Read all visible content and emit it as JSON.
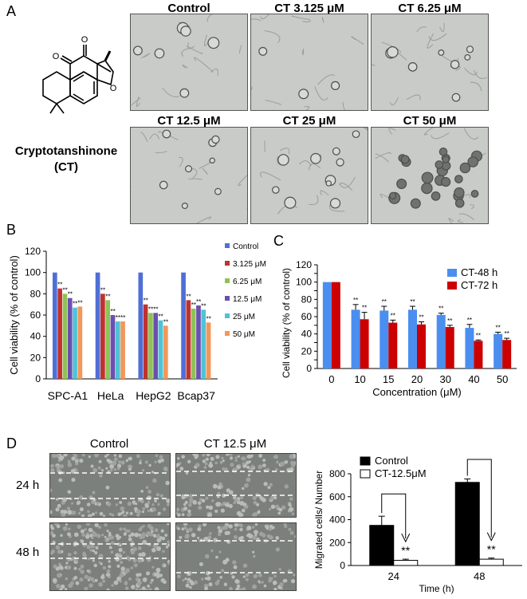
{
  "panels": {
    "a": "A",
    "b": "B",
    "c": "C",
    "d": "D"
  },
  "compound": {
    "name": "Cryptotanshinone",
    "abbrev": "(CT)"
  },
  "micrographs": [
    "Control",
    "CT 3.125 μM",
    "CT 6.25 μM",
    "CT 12.5 μM",
    "CT 25 μM",
    "CT 50 μM"
  ],
  "scratch": {
    "col_labels": [
      "Control",
      "CT 12.5 μM"
    ],
    "row_labels": [
      "24 h",
      "48 h"
    ]
  },
  "colors": {
    "control": "#4f6fd6",
    "c3125": "#c0322f",
    "c625": "#8fc256",
    "c125": "#6b4fb0",
    "c25": "#4ec3d4",
    "c50": "#f2975a",
    "ct48": "#4a8ef0",
    "ct72": "#cc0000"
  },
  "chart_data": [
    {
      "type": "bar",
      "ylabel": "Cell viability (% of control)",
      "ylim": [
        0,
        120
      ],
      "yticks": [
        0,
        20,
        40,
        60,
        80,
        100,
        120
      ],
      "categories": [
        "SPC-A1",
        "HeLa",
        "HepG2",
        "Bcap37"
      ],
      "series": [
        {
          "name": "Control",
          "values": [
            100,
            100,
            100,
            100
          ]
        },
        {
          "name": "3.125 μM",
          "values": [
            85,
            80,
            70,
            74
          ]
        },
        {
          "name": "6.25 μM",
          "values": [
            80,
            74,
            62,
            66
          ]
        },
        {
          "name": "12.5 μM",
          "values": [
            76,
            60,
            62,
            69
          ]
        },
        {
          "name": "25 μM",
          "values": [
            67,
            54,
            55,
            65
          ]
        },
        {
          "name": "50 μM",
          "values": [
            68,
            54,
            50,
            53
          ]
        }
      ],
      "annotation": "**",
      "legend_position": "right"
    },
    {
      "type": "bar",
      "xlabel": "Concentration (μM)",
      "ylabel": "Cell viability (% of control)",
      "ylim": [
        0,
        120
      ],
      "yticks": [
        0,
        10,
        20,
        30,
        40,
        50,
        60,
        70,
        80,
        90,
        100,
        110,
        120
      ],
      "categories": [
        "0",
        "10",
        "15",
        "20",
        "30",
        "40",
        "50"
      ],
      "series": [
        {
          "name": "CT-48 h",
          "values": [
            100,
            68,
            67,
            68,
            62,
            47,
            40
          ],
          "errors": [
            0,
            6,
            5,
            4,
            2,
            4,
            2
          ]
        },
        {
          "name": "CT-72 h",
          "values": [
            100,
            57,
            53,
            51,
            48,
            32,
            33
          ],
          "errors": [
            0,
            8,
            3,
            3,
            2,
            1,
            2
          ]
        }
      ],
      "annotation": "**",
      "legend_position": "top-right"
    },
    {
      "type": "bar",
      "xlabel": "Time (h)",
      "ylabel": "Migrated cells/ Number",
      "ylim": [
        0,
        800
      ],
      "yticks": [
        0,
        200,
        400,
        600,
        800
      ],
      "categories": [
        "24",
        "48"
      ],
      "series": [
        {
          "name": "Control",
          "values": [
            350,
            725
          ],
          "errors": [
            80,
            30
          ]
        },
        {
          "name": "CT-12.5μM",
          "values": [
            45,
            55
          ],
          "errors": [
            10,
            10
          ]
        }
      ],
      "annotation": "**",
      "legend_position": "top-left"
    }
  ]
}
